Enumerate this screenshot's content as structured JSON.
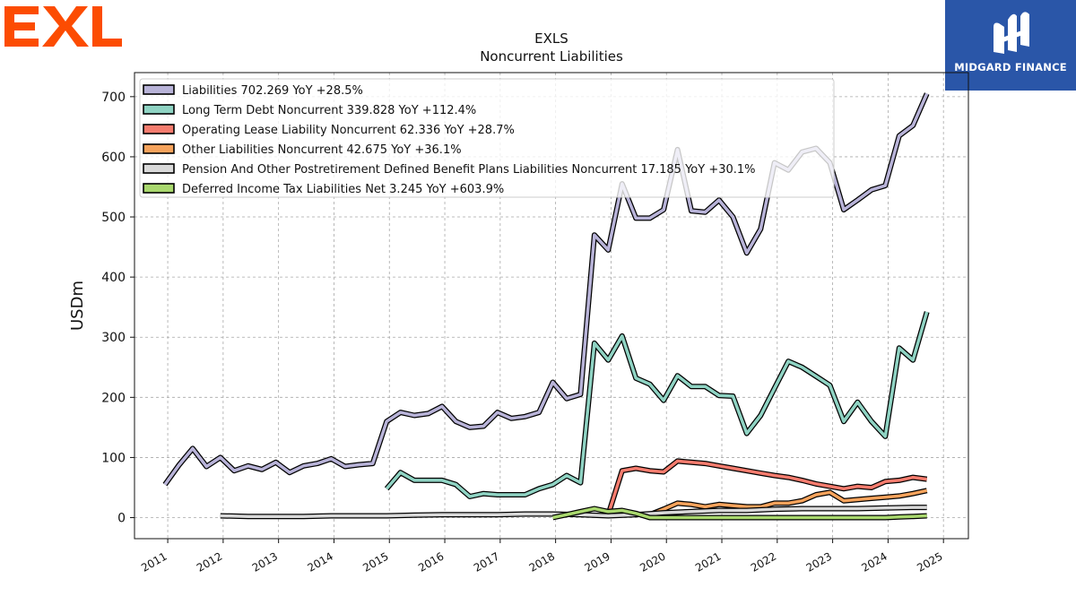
{
  "brand": {
    "logo_text": "EXL",
    "logo_color": "#fc4c02"
  },
  "partner": {
    "name": "MIDGARD FINANCE",
    "bg_color": "#2a56a8"
  },
  "chart_data": {
    "type": "line",
    "title": "EXLS",
    "subtitle": "Noncurrent  Liabilities",
    "ylabel": "USDm",
    "xlabel": "",
    "xlim": [
      2010.4,
      2025.45
    ],
    "ylim": [
      -35,
      740
    ],
    "yticks": [
      0,
      100,
      200,
      300,
      400,
      500,
      600,
      700
    ],
    "xticks": [
      2011,
      2012,
      2013,
      2014,
      2015,
      2016,
      2017,
      2018,
      2019,
      2020,
      2021,
      2022,
      2023,
      2024,
      2025
    ],
    "grid": true,
    "legend_position": "top-left",
    "series": [
      {
        "name": "Liabilities",
        "legend_label": "Liabilities  702.269 YoY +28.5%",
        "color": "#b8b3d8",
        "x": [
          2010.95,
          2011.2,
          2011.45,
          2011.7,
          2011.95,
          2012.2,
          2012.45,
          2012.7,
          2012.95,
          2013.2,
          2013.45,
          2013.7,
          2013.95,
          2014.2,
          2014.45,
          2014.7,
          2014.95,
          2015.2,
          2015.45,
          2015.7,
          2015.95,
          2016.2,
          2016.45,
          2016.7,
          2016.95,
          2017.2,
          2017.45,
          2017.7,
          2017.95,
          2018.2,
          2018.45,
          2018.7,
          2018.95,
          2019.2,
          2019.45,
          2019.7,
          2019.95,
          2020.2,
          2020.45,
          2020.7,
          2020.95,
          2021.2,
          2021.45,
          2021.7,
          2021.95,
          2022.2,
          2022.45,
          2022.7,
          2022.95,
          2023.2,
          2023.45,
          2023.7,
          2023.95,
          2024.2,
          2024.45,
          2024.7
        ],
        "values": [
          55,
          87,
          115,
          85,
          100,
          78,
          86,
          80,
          92,
          75,
          86,
          90,
          98,
          85,
          88,
          90,
          160,
          175,
          170,
          173,
          185,
          160,
          150,
          152,
          175,
          165,
          168,
          175,
          225,
          198,
          205,
          470,
          445,
          555,
          498,
          498,
          512,
          612,
          510,
          508,
          528,
          500,
          440,
          480,
          590,
          578,
          608,
          614,
          590,
          512,
          528,
          545,
          552,
          635,
          652,
          705
        ]
      },
      {
        "name": "Long Term Debt Noncurrent",
        "legend_label": "Long Term Debt Noncurrent  339.828 YoY +112.4%",
        "color": "#8fd3c3",
        "x": [
          2014.95,
          2015.2,
          2015.45,
          2015.7,
          2015.95,
          2016.2,
          2016.45,
          2016.7,
          2016.95,
          2017.2,
          2017.45,
          2017.7,
          2017.95,
          2018.2,
          2018.45,
          2018.7,
          2018.95,
          2019.2,
          2019.45,
          2019.7,
          2019.95,
          2020.2,
          2020.45,
          2020.7,
          2020.95,
          2021.2,
          2021.45,
          2021.7,
          2021.95,
          2022.2,
          2022.45,
          2022.7,
          2022.95,
          2023.2,
          2023.45,
          2023.7,
          2023.95,
          2024.2,
          2024.45,
          2024.7
        ],
        "values": [
          48,
          75,
          62,
          62,
          62,
          55,
          35,
          40,
          38,
          38,
          38,
          48,
          55,
          70,
          58,
          290,
          262,
          302,
          232,
          222,
          195,
          236,
          218,
          218,
          203,
          202,
          140,
          170,
          215,
          260,
          250,
          235,
          220,
          160,
          192,
          160,
          135,
          282,
          262,
          342
        ]
      },
      {
        "name": "Operating Lease Liability Noncurrent",
        "legend_label": "Operating Lease Liability Noncurrent  62.336 YoY +28.7%",
        "color": "#f57c6e",
        "x": [
          2018.95,
          2019.2,
          2019.45,
          2019.7,
          2019.95,
          2020.2,
          2020.45,
          2020.7,
          2020.95,
          2021.2,
          2021.45,
          2021.7,
          2021.95,
          2022.2,
          2022.45,
          2022.7,
          2022.95,
          2023.2,
          2023.45,
          2023.7,
          2023.95,
          2024.2,
          2024.45,
          2024.7
        ],
        "values": [
          5,
          78,
          82,
          78,
          76,
          94,
          92,
          90,
          86,
          82,
          78,
          74,
          70,
          67,
          62,
          56,
          52,
          48,
          52,
          50,
          60,
          62,
          67,
          64
        ]
      },
      {
        "name": "Other Liabilities Noncurrent",
        "legend_label": "Other Liabilities Noncurrent  42.675 YoY +36.1%",
        "color": "#f6a35c",
        "x": [
          2019.7,
          2019.95,
          2020.2,
          2020.45,
          2020.7,
          2020.95,
          2021.2,
          2021.45,
          2021.7,
          2021.95,
          2022.2,
          2022.45,
          2022.7,
          2022.95,
          2023.2,
          2023.45,
          2023.7,
          2023.95,
          2024.2,
          2024.45,
          2024.7
        ],
        "values": [
          5,
          14,
          24,
          22,
          18,
          22,
          20,
          18,
          18,
          24,
          24,
          28,
          38,
          42,
          28,
          30,
          32,
          34,
          36,
          40,
          45
        ]
      },
      {
        "name": "Pension And Other Postretirement Defined Benefit Plans Liabilities Noncurrent",
        "legend_label": "Pension And Other Postretirement Defined Benefit Plans Liabilities Noncurrent  17.185 YoY +30.1%",
        "color": "#d9d9d9",
        "x": [
          2011.95,
          2012.45,
          2012.95,
          2013.45,
          2013.95,
          2014.45,
          2014.95,
          2015.45,
          2015.95,
          2016.45,
          2016.95,
          2017.45,
          2017.95,
          2018.45,
          2018.95,
          2019.45,
          2019.95,
          2020.45,
          2020.95,
          2021.45,
          2021.95,
          2022.45,
          2022.95,
          2023.45,
          2023.95,
          2024.45,
          2024.7
        ],
        "values": [
          3,
          2,
          2,
          2,
          3,
          3,
          3,
          4,
          5,
          5,
          5,
          6,
          6,
          5,
          3,
          5,
          8,
          10,
          12,
          12,
          14,
          15,
          15,
          15,
          16,
          17,
          17
        ]
      },
      {
        "name": "Deferred Income Tax Liabilities Net",
        "legend_label": "Deferred Income Tax Liabilities Net  3.245 YoY +603.9%",
        "color": "#a9d86e",
        "x": [
          2017.95,
          2018.2,
          2018.45,
          2018.7,
          2018.95,
          2019.2,
          2019.45,
          2019.7,
          2019.95,
          2020.2,
          2020.45,
          2020.7,
          2020.95,
          2021.2,
          2021.45,
          2021.7,
          2021.95,
          2022.2,
          2022.45,
          2022.7,
          2022.95,
          2023.2,
          2023.45,
          2023.7,
          2023.95,
          2024.2,
          2024.45,
          2024.7
        ],
        "values": [
          0,
          5,
          10,
          15,
          10,
          12,
          7,
          0,
          0,
          0,
          0,
          0,
          0,
          0,
          0,
          0,
          0,
          0,
          0,
          0,
          0,
          0,
          0,
          0,
          0,
          1,
          2,
          3
        ]
      }
    ]
  }
}
